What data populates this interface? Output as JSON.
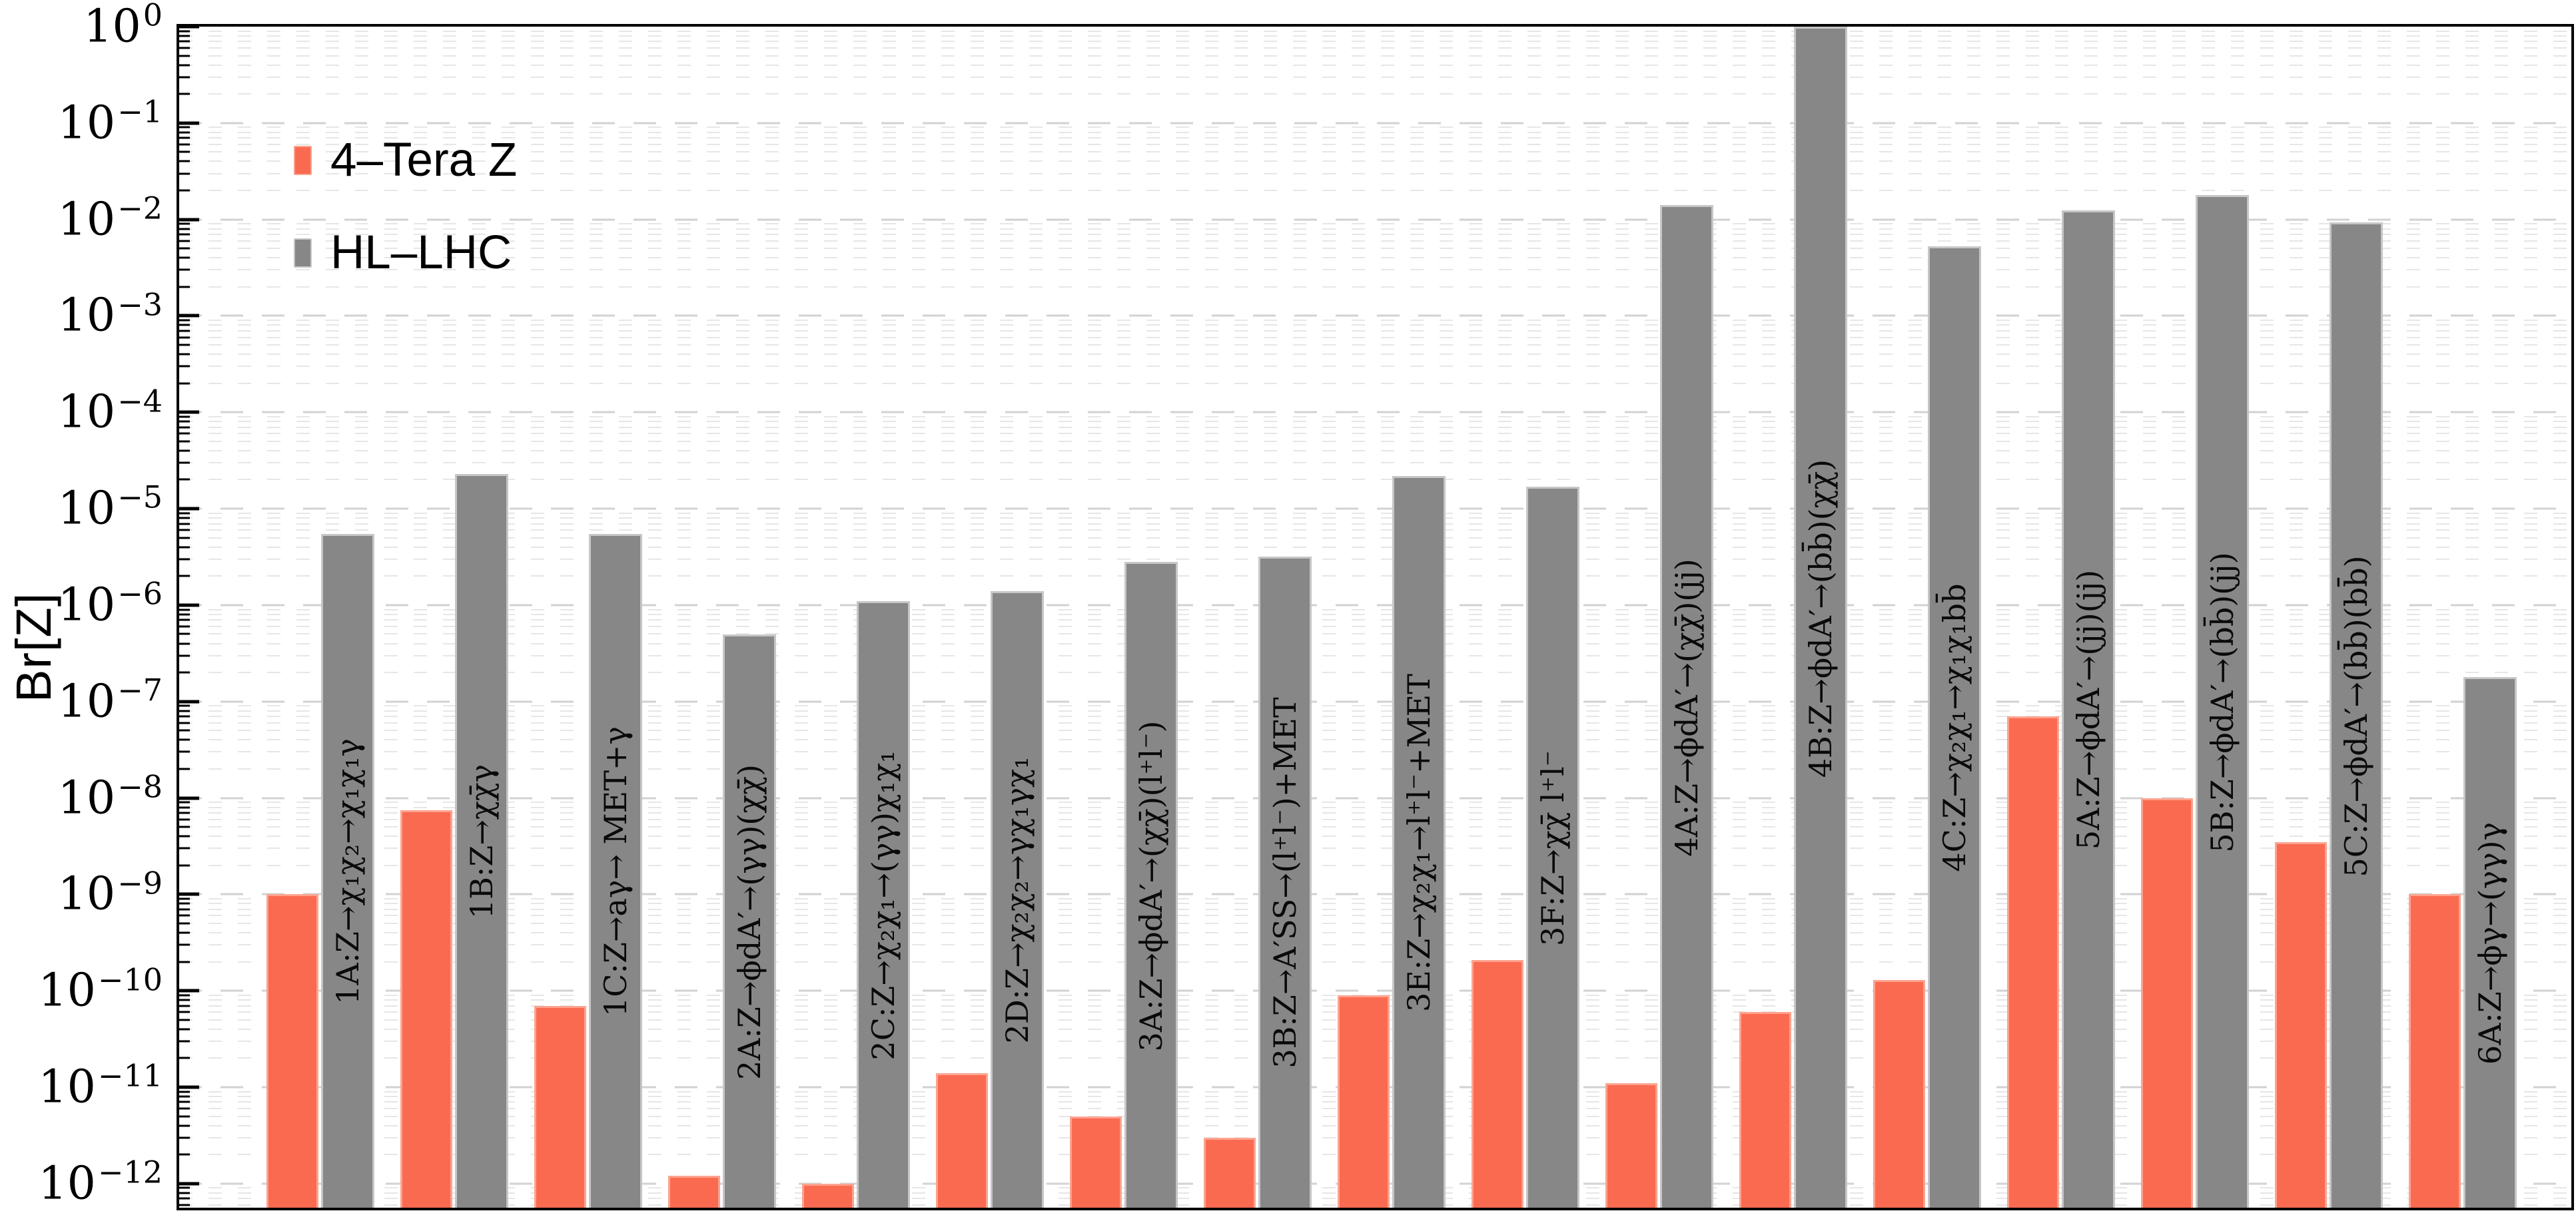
{
  "figure": {
    "ylabel": "Br[Z]"
  },
  "legend": {
    "items": [
      {
        "label": "4–Tera Z",
        "icon": "orange-swatch-icon",
        "color": "#fa6a51",
        "edge": "#fca38f"
      },
      {
        "label": "HL–LHC",
        "icon": "gray-swatch-icon",
        "color": "#878787",
        "edge": "#c6c6c6"
      }
    ]
  },
  "chart_data": {
    "type": "bar",
    "title": "",
    "xlabel": "",
    "ylabel": "Br[Z]",
    "grid": "dashed log minor gridlines",
    "legend_position": "top-left",
    "yaxis": {
      "scale": "log",
      "ymax_log10": 0,
      "ymin_log10": -12.25,
      "tick_base": "10",
      "tick_exponents": [
        0,
        -1,
        -2,
        -3,
        -4,
        -5,
        -6,
        -7,
        -8,
        -9,
        -10,
        -11,
        -12
      ],
      "tick_exponent_labels": [
        "0",
        "−1",
        "−2",
        "−3",
        "−4",
        "−5",
        "−6",
        "−7",
        "−8",
        "−9",
        "−10",
        "−11",
        "−12"
      ]
    },
    "categories": [
      "1A:Z→χ₁χ₂→χ₁χ₁γ",
      "1B:Z→χχ̄γ",
      "1C:Z→aγ→ MET+γ",
      "2A:Z→ϕdA′→(γγ)(χχ̄)",
      "2C:Z→χ₂χ₁→(γγ)χ₁χ₁",
      "2D:Z→χ₂χ₂→γχ₁γχ₁",
      "3A:Z→ϕdA′→(χχ̄)(l⁺l⁻)",
      "3B:Z→A′SS→(l⁺l⁻)+MET",
      "3E:Z→χ₂χ₁→l⁺l⁻+MET",
      "3F:Z→χχ̄ l⁺l⁻",
      "4A:Z→ϕdA′→(χχ̄)(jj)",
      "4B:Z→ϕdA′→(bb̄)(χχ̄)",
      "4C:Z→χ₂χ₁→χ₁χ₁bb̄",
      "5A:Z→ϕdA′→(jj)(jj)",
      "5B:Z→ϕdA′→(bb̄)(jj)",
      "5C:Z→ϕdA′→(bb̄)(bb̄)",
      "6A:Z→ϕγ→(γγ)γ"
    ],
    "series": [
      {
        "name": "4–Tera Z",
        "color": "#fa6a51",
        "edge": "#fca38f",
        "values": [
          1e-09,
          7.5e-09,
          7e-11,
          1.2e-12,
          1e-12,
          1.4e-11,
          5e-12,
          3e-12,
          9e-11,
          2.1e-10,
          1.1e-11,
          6e-11,
          1.3e-10,
          7e-08,
          1e-08,
          3.5e-09,
          1e-09
        ]
      },
      {
        "name": "HL–LHC",
        "color": "#878787",
        "edge": "#c6c6c6",
        "values": [
          5.5e-06,
          2.3e-05,
          5.5e-06,
          5e-07,
          1.1e-06,
          1.4e-06,
          2.8e-06,
          3.2e-06,
          2.2e-05,
          1.7e-05,
          0.014,
          1.0,
          0.0053,
          0.0125,
          0.018,
          0.0093,
          1.8e-07
        ]
      }
    ]
  }
}
